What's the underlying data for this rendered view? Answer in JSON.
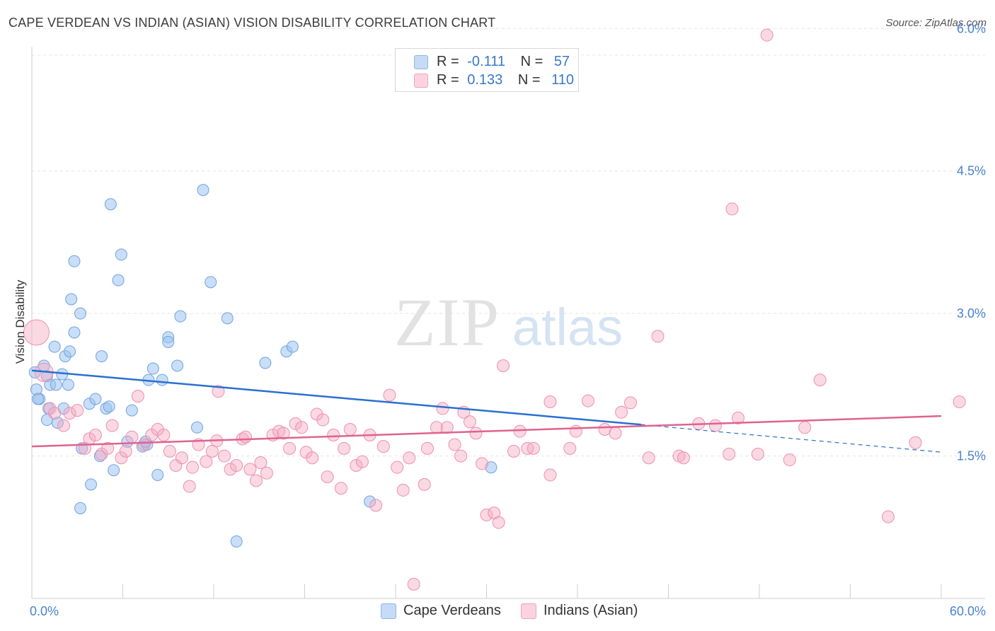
{
  "title": "CAPE VERDEAN VS INDIAN (ASIAN) VISION DISABILITY CORRELATION CHART",
  "source": "Source: ZipAtlas.com",
  "watermark": {
    "zip": "ZIP",
    "atlas": "atlas"
  },
  "legend": {
    "rows": [
      {
        "r_label": "R =",
        "r_value": "-0.111",
        "n_label": "N =",
        "n_value": "57"
      },
      {
        "r_label": "R =",
        "r_value": "0.133",
        "n_label": "N =",
        "n_value": "110"
      }
    ]
  },
  "bottom_legend": [
    "Cape Verdeans",
    "Indians (Asian)"
  ],
  "chart_data": {
    "type": "scatter",
    "title": "CAPE VERDEAN VS INDIAN (ASIAN) VISION DISABILITY CORRELATION CHART",
    "xlabel": "",
    "ylabel": "Vision Disability",
    "xlim": [
      0,
      60
    ],
    "ylim": [
      0,
      6.3
    ],
    "x_tick_labels": [
      "0.0%",
      "60.0%"
    ],
    "y_ticks": [
      1.5,
      3.0,
      4.5,
      6.0
    ],
    "y_tick_labels": [
      "1.5%",
      "3.0%",
      "4.5%",
      "6.0%"
    ],
    "grid": true,
    "colors": {
      "cape": "#9dc3f0",
      "cape_line": "#2a6fd1",
      "indian": "#f4aac2",
      "indian_line": "#e0628f",
      "tick_text": "#4a82cf"
    },
    "series": [
      {
        "name": "Cape Verdeans",
        "r": -0.111,
        "n": 57,
        "trend": {
          "x0": 0,
          "y0": 2.4,
          "x1": 40.2,
          "y1": 1.83,
          "dash_x1": 60,
          "dash_y1": 1.54
        },
        "points": [
          [
            0.2,
            2.38
          ],
          [
            0.5,
            2.1
          ],
          [
            0.3,
            2.2
          ],
          [
            0.8,
            2.45
          ],
          [
            1,
            2.34
          ],
          [
            1.2,
            2.25
          ],
          [
            1.1,
            2.0
          ],
          [
            1.5,
            2.65
          ],
          [
            1.6,
            2.25
          ],
          [
            2,
            2.36
          ],
          [
            2.2,
            2.55
          ],
          [
            2.4,
            2.25
          ],
          [
            2.5,
            2.6
          ],
          [
            2.6,
            3.15
          ],
          [
            2.8,
            2.8
          ],
          [
            2.8,
            3.55
          ],
          [
            3.2,
            3.0
          ],
          [
            3.8,
            2.05
          ],
          [
            4.2,
            2.1
          ],
          [
            4.6,
            2.55
          ],
          [
            4.9,
            2.0
          ],
          [
            5.1,
            2.02
          ],
          [
            5.2,
            4.15
          ],
          [
            5.4,
            1.35
          ],
          [
            5.7,
            3.35
          ],
          [
            5.9,
            3.62
          ],
          [
            6.3,
            1.65
          ],
          [
            6.6,
            1.98
          ],
          [
            7.3,
            1.6
          ],
          [
            7.7,
            2.3
          ],
          [
            8.0,
            2.42
          ],
          [
            8.3,
            1.3
          ],
          [
            8.6,
            2.3
          ],
          [
            9.0,
            2.75
          ],
          [
            9.0,
            2.7
          ],
          [
            9.6,
            2.45
          ],
          [
            9.8,
            2.97
          ],
          [
            10.9,
            1.8
          ],
          [
            11.3,
            4.3
          ],
          [
            11.8,
            3.33
          ],
          [
            12.9,
            2.95
          ],
          [
            13.5,
            0.6
          ],
          [
            15.4,
            2.48
          ],
          [
            16.8,
            2.6
          ],
          [
            17.2,
            2.65
          ],
          [
            22.3,
            1.02
          ],
          [
            30.3,
            1.38
          ],
          [
            7.6,
            1.62
          ],
          [
            3.2,
            0.95
          ],
          [
            3.9,
            1.2
          ],
          [
            1.7,
            1.85
          ],
          [
            0.4,
            2.1
          ],
          [
            1.0,
            1.88
          ],
          [
            4.5,
            1.5
          ],
          [
            3.3,
            1.58
          ],
          [
            2.1,
            2.0
          ],
          [
            7.5,
            1.65
          ]
        ]
      },
      {
        "name": "Indians (Asian)",
        "r": 0.133,
        "n": 110,
        "trend": {
          "x0": 0,
          "y0": 1.6,
          "x1": 60,
          "y1": 1.92
        },
        "points": [
          [
            0.3,
            2.8
          ],
          [
            0.8,
            2.38
          ],
          [
            1.2,
            2.0
          ],
          [
            1.5,
            1.95
          ],
          [
            2.1,
            1.82
          ],
          [
            2.5,
            1.95
          ],
          [
            3.0,
            1.98
          ],
          [
            3.5,
            1.58
          ],
          [
            3.8,
            1.68
          ],
          [
            4.2,
            1.72
          ],
          [
            4.6,
            1.52
          ],
          [
            5.0,
            1.58
          ],
          [
            5.3,
            1.82
          ],
          [
            5.9,
            1.48
          ],
          [
            6.2,
            1.55
          ],
          [
            6.6,
            1.7
          ],
          [
            7.0,
            2.13
          ],
          [
            7.4,
            1.62
          ],
          [
            7.9,
            1.72
          ],
          [
            8.3,
            1.78
          ],
          [
            8.7,
            1.72
          ],
          [
            9.1,
            1.55
          ],
          [
            9.5,
            1.4
          ],
          [
            9.9,
            1.48
          ],
          [
            10.4,
            1.18
          ],
          [
            10.6,
            1.38
          ],
          [
            11.0,
            1.62
          ],
          [
            11.5,
            1.44
          ],
          [
            11.9,
            1.55
          ],
          [
            12.2,
            1.66
          ],
          [
            12.3,
            2.18
          ],
          [
            12.7,
            1.5
          ],
          [
            13.1,
            1.36
          ],
          [
            13.5,
            1.4
          ],
          [
            13.9,
            1.68
          ],
          [
            14.1,
            1.7
          ],
          [
            14.4,
            1.36
          ],
          [
            14.8,
            1.24
          ],
          [
            15.1,
            1.43
          ],
          [
            15.5,
            1.32
          ],
          [
            15.9,
            1.72
          ],
          [
            16.3,
            1.76
          ],
          [
            16.6,
            1.74
          ],
          [
            17.0,
            1.58
          ],
          [
            17.4,
            1.84
          ],
          [
            17.8,
            1.8
          ],
          [
            18.1,
            1.54
          ],
          [
            18.5,
            1.48
          ],
          [
            18.8,
            1.94
          ],
          [
            19.2,
            1.88
          ],
          [
            19.5,
            1.28
          ],
          [
            19.9,
            1.72
          ],
          [
            20.4,
            1.16
          ],
          [
            20.6,
            1.58
          ],
          [
            21.0,
            1.78
          ],
          [
            21.4,
            1.4
          ],
          [
            21.8,
            1.44
          ],
          [
            22.3,
            1.72
          ],
          [
            22.7,
            0.98
          ],
          [
            23.2,
            1.6
          ],
          [
            23.6,
            2.14
          ],
          [
            24.1,
            1.38
          ],
          [
            24.5,
            1.14
          ],
          [
            24.9,
            1.48
          ],
          [
            25.2,
            0.15
          ],
          [
            25.9,
            1.2
          ],
          [
            26.1,
            1.58
          ],
          [
            26.7,
            1.8
          ],
          [
            27.1,
            2.0
          ],
          [
            27.4,
            1.8
          ],
          [
            27.9,
            1.62
          ],
          [
            28.3,
            1.5
          ],
          [
            28.5,
            1.96
          ],
          [
            28.9,
            1.86
          ],
          [
            29.3,
            1.74
          ],
          [
            29.7,
            1.42
          ],
          [
            30.0,
            0.88
          ],
          [
            30.5,
            0.9
          ],
          [
            30.8,
            0.8
          ],
          [
            31.1,
            2.45
          ],
          [
            31.8,
            1.55
          ],
          [
            32.2,
            1.76
          ],
          [
            32.7,
            1.58
          ],
          [
            33.1,
            1.58
          ],
          [
            34.2,
            2.07
          ],
          [
            34.2,
            1.3
          ],
          [
            35.5,
            1.58
          ],
          [
            35.9,
            1.76
          ],
          [
            36.7,
            2.08
          ],
          [
            37.8,
            1.78
          ],
          [
            38.5,
            1.74
          ],
          [
            38.9,
            1.96
          ],
          [
            39.5,
            2.06
          ],
          [
            40.7,
            1.48
          ],
          [
            41.3,
            2.76
          ],
          [
            42.7,
            1.5
          ],
          [
            43.0,
            1.48
          ],
          [
            44.0,
            1.84
          ],
          [
            45.1,
            1.82
          ],
          [
            46.0,
            1.52
          ],
          [
            46.6,
            1.9
          ],
          [
            47.9,
            1.52
          ],
          [
            50.0,
            1.46
          ],
          [
            51.0,
            1.8
          ],
          [
            52.0,
            2.3
          ],
          [
            56.5,
            0.86
          ],
          [
            58.3,
            1.64
          ],
          [
            61.2,
            2.07
          ],
          [
            46.2,
            4.1
          ],
          [
            48.5,
            5.93
          ]
        ]
      }
    ]
  }
}
